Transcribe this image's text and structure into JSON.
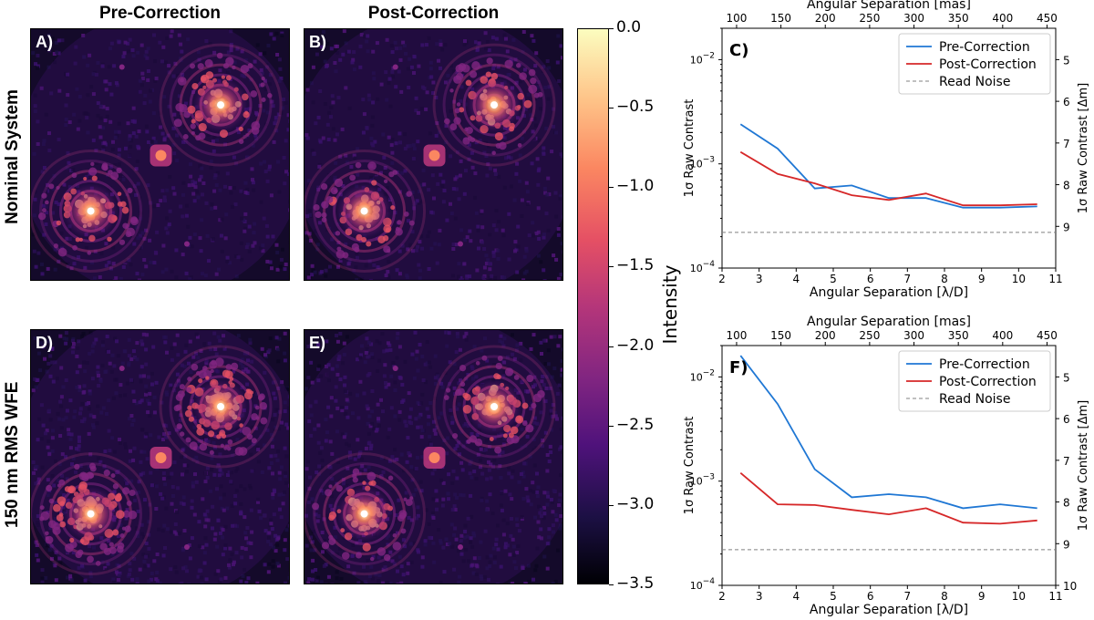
{
  "columns": {
    "pre": "Pre-Correction",
    "post": "Post-Correction"
  },
  "rows": {
    "nominal": "Nominal System",
    "wfe": "150 nm RMS WFE"
  },
  "panels": {
    "a": "A)",
    "b": "B)",
    "c": "C)",
    "d": "D)",
    "e": "E)",
    "f": "F)"
  },
  "colorbar": {
    "label": "Intensity",
    "ticks": [
      "0.0",
      "−0.5",
      "−1.0",
      "−1.5",
      "−2.0",
      "−2.5",
      "−3.0",
      "−3.5"
    ],
    "range": [
      -3.5,
      0.0
    ],
    "colormap": [
      "#000004",
      "#1c1044",
      "#4f127b",
      "#812581",
      "#b5367a",
      "#e55064",
      "#fb8761",
      "#fec287",
      "#fcfdbf"
    ]
  },
  "chart_data": [
    {
      "type": "line",
      "panel": "C)",
      "xlabel": "Angular Separation [λ/D]",
      "x2label": "Angular Separation [mas]",
      "ylabel": "1σ Raw Contrast",
      "y2label": "1σ Raw Contrast [Δm]",
      "xlim": [
        2,
        11
      ],
      "ylim": [
        0.0001,
        0.02
      ],
      "yscale": "log",
      "xticks": [
        "2",
        "3",
        "4",
        "5",
        "6",
        "7",
        "8",
        "9",
        "10",
        "11"
      ],
      "yticks": [
        {
          "value": 0.01,
          "base": "10",
          "exp": "−2"
        },
        {
          "value": 0.001,
          "base": "10",
          "exp": "−3"
        },
        {
          "value": 0.0001,
          "base": "10",
          "exp": "−4"
        }
      ],
      "x2ticks": [
        "100",
        "150",
        "200",
        "250",
        "300",
        "350",
        "400",
        "450"
      ],
      "x2_per_lambda_d": 41.8,
      "y2ticks": [
        "5",
        "6",
        "7",
        "8",
        "9"
      ],
      "legend_position": "top-right",
      "series": [
        {
          "name": "Pre-Correction",
          "color": "#1f77d4",
          "x": [
            2.5,
            3.5,
            4.5,
            5.5,
            6.5,
            7.5,
            8.5,
            9.5,
            10.5
          ],
          "values": [
            0.0024,
            0.0014,
            0.00058,
            0.00062,
            0.00047,
            0.00047,
            0.00038,
            0.00038,
            0.00039
          ]
        },
        {
          "name": "Post-Correction",
          "color": "#d62728",
          "x": [
            2.5,
            3.5,
            4.5,
            5.5,
            6.5,
            7.5,
            8.5,
            9.5,
            10.5
          ],
          "values": [
            0.0013,
            0.0008,
            0.00065,
            0.0005,
            0.00045,
            0.00052,
            0.0004,
            0.0004,
            0.00041
          ]
        },
        {
          "name": "Read Noise",
          "color": "#808080",
          "dashed": true,
          "x": [
            2,
            11
          ],
          "values": [
            0.00022,
            0.00022
          ]
        }
      ]
    },
    {
      "type": "line",
      "panel": "F)",
      "xlabel": "Angular Separation [λ/D]",
      "x2label": "Angular Separation [mas]",
      "ylabel": "1σ Raw Contrast",
      "y2label": "1σ Raw Contrast [Δm]",
      "xlim": [
        2,
        11
      ],
      "ylim": [
        0.0001,
        0.02
      ],
      "yscale": "log",
      "xticks": [
        "2",
        "3",
        "4",
        "5",
        "6",
        "7",
        "8",
        "9",
        "10",
        "11"
      ],
      "yticks": [
        {
          "value": 0.01,
          "base": "10",
          "exp": "−2"
        },
        {
          "value": 0.001,
          "base": "10",
          "exp": "−3"
        },
        {
          "value": 0.0001,
          "base": "10",
          "exp": "−4"
        }
      ],
      "x2ticks": [
        "100",
        "150",
        "200",
        "250",
        "300",
        "350",
        "400",
        "450"
      ],
      "x2_per_lambda_d": 41.8,
      "y2ticks": [
        "5",
        "6",
        "7",
        "8",
        "9",
        "10"
      ],
      "legend_position": "top-right",
      "series": [
        {
          "name": "Pre-Correction",
          "color": "#1f77d4",
          "x": [
            2.5,
            3.5,
            4.5,
            5.5,
            6.5,
            7.5,
            8.5,
            9.5,
            10.5
          ],
          "values": [
            0.016,
            0.0055,
            0.0013,
            0.0007,
            0.00075,
            0.0007,
            0.00055,
            0.0006,
            0.00055
          ]
        },
        {
          "name": "Post-Correction",
          "color": "#d62728",
          "x": [
            2.5,
            3.5,
            4.5,
            5.5,
            6.5,
            7.5,
            8.5,
            9.5,
            10.5
          ],
          "values": [
            0.0012,
            0.0006,
            0.00059,
            0.00053,
            0.00048,
            0.00055,
            0.0004,
            0.00039,
            0.00042
          ]
        },
        {
          "name": "Read Noise",
          "color": "#808080",
          "dashed": true,
          "x": [
            2,
            11
          ],
          "values": [
            0.00022,
            0.00022
          ]
        }
      ]
    }
  ]
}
